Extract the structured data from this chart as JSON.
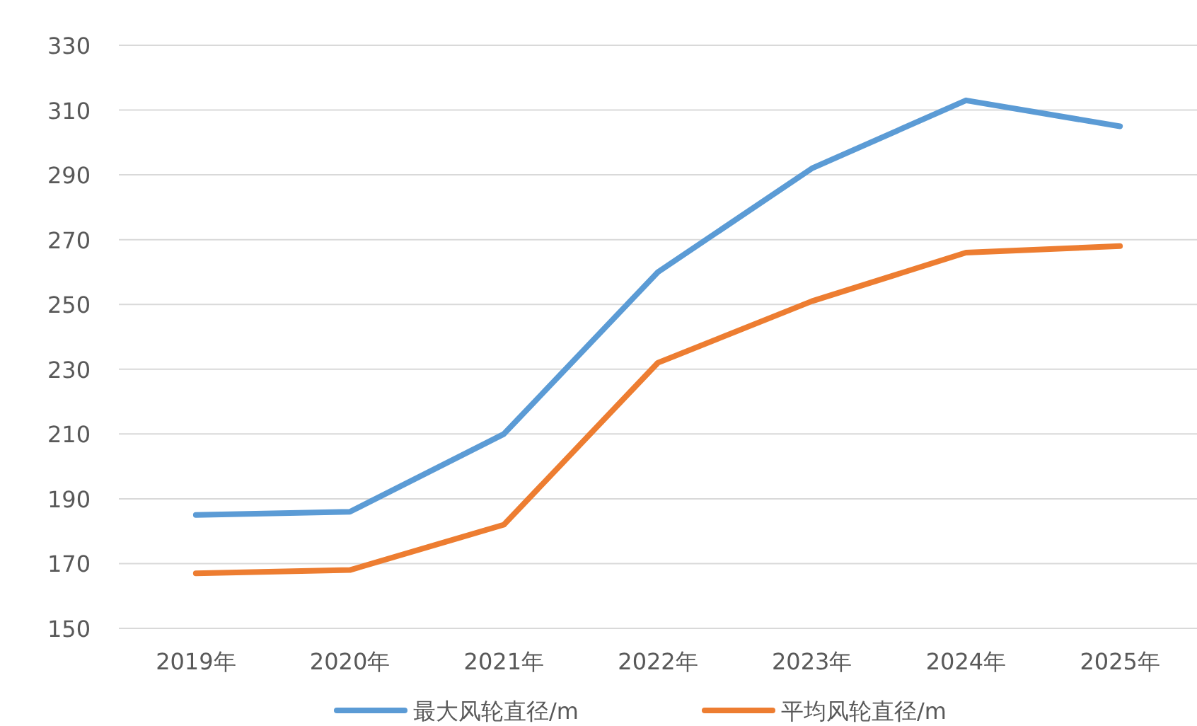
{
  "chart_data": {
    "type": "line",
    "categories": [
      "2019年",
      "2020年",
      "2021年",
      "2022年",
      "2023年",
      "2024年",
      "2025年"
    ],
    "series": [
      {
        "name": "最大风轮直径/m",
        "color": "#5b9bd5",
        "values": [
          185,
          186,
          210,
          260,
          292,
          313,
          305
        ]
      },
      {
        "name": "平均风轮直径/m",
        "color": "#ed7d31",
        "values": [
          167,
          168,
          182,
          232,
          251,
          266,
          268
        ]
      }
    ],
    "ylim": [
      150,
      330
    ],
    "yticks": [
      150,
      170,
      190,
      210,
      230,
      250,
      270,
      290,
      310,
      330
    ],
    "grid": "y",
    "legend": "bottom",
    "marker": "none",
    "line_style": "solid"
  }
}
